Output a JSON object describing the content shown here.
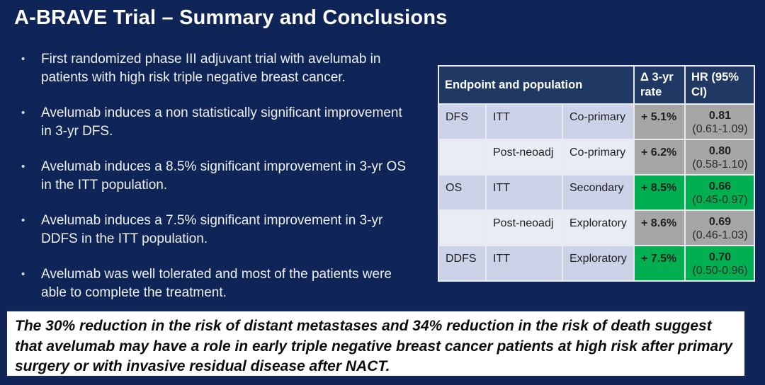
{
  "slide": {
    "title": "A-BRAVE Trial – Summary and Conclusions",
    "bullet_glyph": "•",
    "bullets": [
      "First randomized phase III adjuvant trial with avelumab in patients with high risk triple negative breast cancer.",
      "Avelumab induces a non statistically significant improvement in 3-yr DFS.",
      "Avelumab induces a 8.5% significant improvement in 3-yr OS in the ITT population.",
      "Avelumab induces a 7.5% significant improvement in 3-yr DDFS in the ITT population.",
      "Avelumab was well tolerated and most of the patients were able to complete the treatment."
    ],
    "conclusion": "The 30% reduction in the risk of distant metastases and 34% reduction in the risk of death suggest that avelumab may have a role in early triple negative breast cancer patients at high risk after primary surgery or with invasive residual disease after NACT."
  },
  "table": {
    "header": {
      "endpoint": "Endpoint and population",
      "delta": "Δ 3-yr rate",
      "hr": "HR (95% CI)"
    },
    "rows": [
      {
        "endpoint": "DFS",
        "population": "ITT",
        "role": "Co-primary",
        "delta": "+ 5.1%",
        "hr": "0.81",
        "ci": "(0.61-1.09)",
        "highlight": "gray"
      },
      {
        "endpoint": "",
        "population": "Post-neoadj",
        "role": "Co-primary",
        "delta": "+ 6.2%",
        "hr": "0.80",
        "ci": "(0.58-1.10)",
        "highlight": "gray"
      },
      {
        "endpoint": "OS",
        "population": "ITT",
        "role": "Secondary",
        "delta": "+ 8.5%",
        "hr": "0.66",
        "ci": "(0.45-0.97)",
        "highlight": "green"
      },
      {
        "endpoint": "",
        "population": "Post-neoadj",
        "role": "Exploratory",
        "delta": "+ 8.6%",
        "hr": "0.69",
        "ci": "(0.46-1.03)",
        "highlight": "gray"
      },
      {
        "endpoint": "DDFS",
        "population": "ITT",
        "role": "Exploratory",
        "delta": "+ 7.5%",
        "hr": "0.70",
        "ci": "(0.50-0.96)",
        "highlight": "green"
      }
    ]
  },
  "colors": {
    "slide_background": "#0f2557",
    "table_header_background": "#1f3864",
    "band_dark": "#ccd3e8",
    "band_light": "#e9ebf5",
    "highlight_gray": "#a6a6a6",
    "highlight_green": "#00b050",
    "conclusion_border": "#15255b",
    "title_text": "#ffffff"
  }
}
